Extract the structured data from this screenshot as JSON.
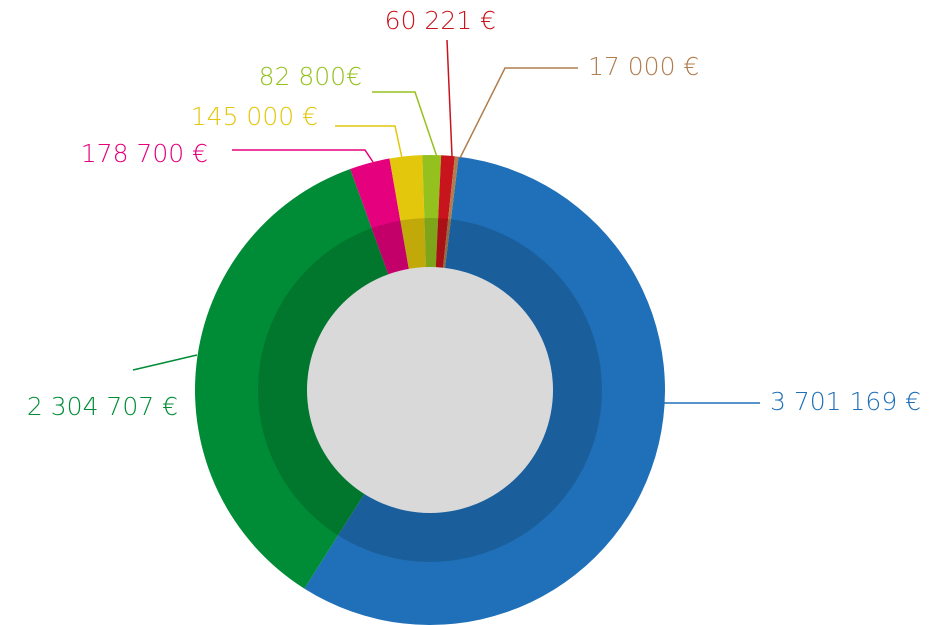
{
  "chart_data": {
    "type": "donut",
    "values": [
      3701169,
      2304707,
      178700,
      145000,
      82800,
      60221,
      17000
    ],
    "value_labels": [
      "3 701 169 €",
      "2 304 707 €",
      "178 700 €",
      "145 000 €",
      "82 800€",
      "60 221 €",
      "17 000 €"
    ],
    "colors": [
      "#1f70b8",
      "#008c36",
      "#e5007d",
      "#e3c70c",
      "#95c11f",
      "#c8141c",
      "#b07d4f"
    ]
  }
}
